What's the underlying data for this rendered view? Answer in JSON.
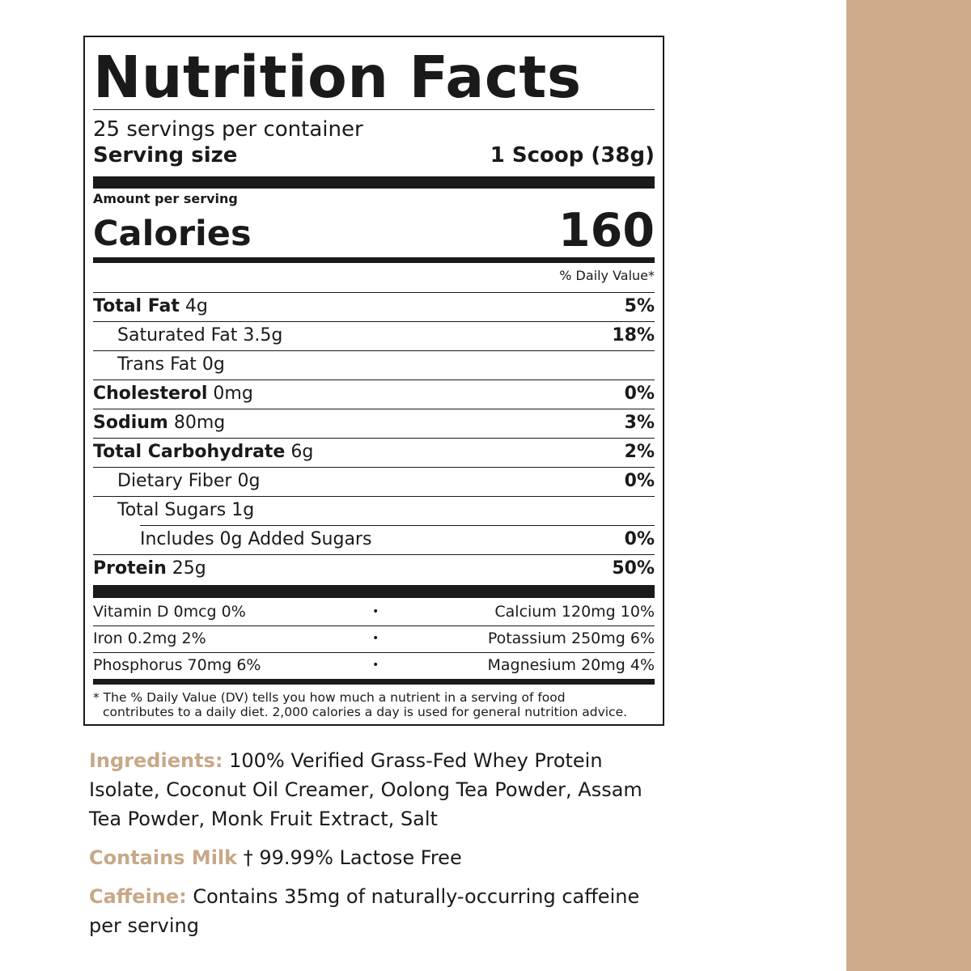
{
  "colors": {
    "accent": "#c7a887",
    "band": "#cdaa89",
    "ink": "#1a1a1a"
  },
  "nutrition": {
    "title": "Nutrition Facts",
    "servings_per_container": "25 servings per container",
    "serving_size_label": "Serving size",
    "serving_size_value": "1 Scoop (38g)",
    "amount_per_serving": "Amount per serving",
    "calories_label": "Calories",
    "calories_value": "160",
    "daily_value_header": "% Daily Value*",
    "rows": [
      {
        "name": "Total Fat",
        "amount": "4g",
        "dv": "5%"
      },
      {
        "name": "Saturated Fat",
        "amount": "3.5g",
        "dv": "18%"
      },
      {
        "name": "Trans Fat",
        "amount": "0g",
        "dv": ""
      },
      {
        "name": "Cholesterol",
        "amount": "0mg",
        "dv": "0%"
      },
      {
        "name": "Sodium",
        "amount": "80mg",
        "dv": "3%"
      },
      {
        "name": "Total Carbohydrate",
        "amount": "6g",
        "dv": "2%"
      },
      {
        "name": "Dietary Fiber",
        "amount": "0g",
        "dv": "0%"
      },
      {
        "name": "Total Sugars",
        "amount": "1g",
        "dv": ""
      },
      {
        "name": "Includes 0g Added Sugars",
        "amount": "",
        "dv": "0%"
      },
      {
        "name": "Protein",
        "amount": "25g",
        "dv": "50%"
      }
    ],
    "vitamins": [
      {
        "left": "Vitamin D 0mcg 0%",
        "right": "Calcium 120mg 10%"
      },
      {
        "left": "Iron 0.2mg 2%",
        "right": "Potassium 250mg 6%"
      },
      {
        "left": "Phosphorus 70mg 6%",
        "right": "Magnesium 20mg 4%"
      }
    ],
    "vitamin_separator": "•",
    "footnote_line1": "* The % Daily Value (DV) tells you how much a nutrient in a serving of food",
    "footnote_line2": "contributes to a daily diet. 2,000 calories a day is used for general nutrition advice."
  },
  "ingredients": {
    "label": "Ingredients:",
    "line1": "100% Verified Grass-Fed Whey Protein",
    "line2": "Isolate, Coconut Oil Creamer, Oolong Tea Powder, Assam",
    "line3": "Tea Powder, Monk Fruit Extract, Salt"
  },
  "allergen": {
    "label": "Contains Milk",
    "text": "† 99.99% Lactose Free"
  },
  "caffeine": {
    "label": "Caffeine:",
    "line1": "Contains 35mg of naturally-occurring caffeine",
    "line2": "per serving"
  }
}
